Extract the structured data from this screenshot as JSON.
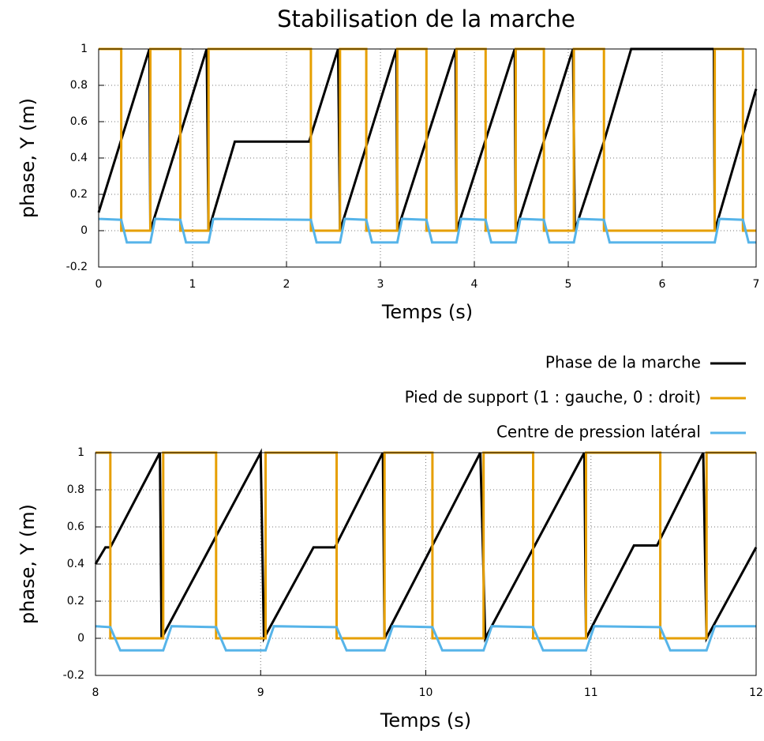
{
  "chart_data": [
    {
      "type": "line",
      "title": "Stabilisation de la marche",
      "xlabel": "Temps (s)",
      "ylabel": "phase, Y (m)",
      "xlim": [
        0,
        7
      ],
      "xticks": [
        0,
        1,
        2,
        3,
        4,
        5,
        6,
        7
      ],
      "ylim": [
        -0.2,
        1
      ],
      "yticks": [
        -0.2,
        0,
        0.2,
        0.4,
        0.6,
        0.8,
        1
      ],
      "grid": true,
      "legend": "outside",
      "series": [
        {
          "name": "Phase de la marche",
          "color": "#000000",
          "x": [
            0,
            0.54,
            0.55,
            1.15,
            1.17,
            1.45,
            2.24,
            2.55,
            2.57,
            3.17,
            3.18,
            3.8,
            3.81,
            4.43,
            4.44,
            5.05,
            5.07,
            5.38,
            5.67,
            6.55,
            6.56,
            7
          ],
          "values": [
            0.1,
            1,
            0,
            1,
            0,
            0.49,
            0.49,
            1,
            0,
            1,
            0,
            1,
            0,
            1,
            0,
            1,
            0,
            0.49,
            1,
            1,
            0,
            0.78
          ]
        },
        {
          "name": "Pied de support (1 : gauche, 0 : droit)",
          "color": "#e69f00",
          "x": [
            0,
            0.24,
            0.24,
            0.55,
            0.55,
            0.87,
            0.87,
            1.17,
            1.17,
            2.26,
            2.26,
            2.57,
            2.57,
            2.85,
            2.85,
            3.18,
            3.18,
            3.49,
            3.49,
            3.81,
            3.81,
            4.12,
            4.12,
            4.44,
            4.44,
            4.74,
            4.74,
            5.06,
            5.06,
            5.38,
            5.38,
            6.56,
            6.56,
            6.86,
            6.86,
            7
          ],
          "values": [
            1,
            1,
            0,
            0,
            1,
            1,
            0,
            0,
            1,
            1,
            0,
            0,
            1,
            1,
            0,
            0,
            1,
            1,
            0,
            0,
            1,
            1,
            0,
            0,
            1,
            1,
            0,
            0,
            1,
            1,
            0,
            0,
            1,
            1,
            0,
            0
          ]
        },
        {
          "name": "Centre de pression latéral",
          "color": "#56b4e9",
          "x": [
            0,
            0.24,
            0.3,
            0.55,
            0.6,
            0.87,
            0.93,
            1.17,
            1.22,
            2.26,
            2.32,
            2.57,
            2.62,
            2.85,
            2.91,
            3.18,
            3.23,
            3.49,
            3.55,
            3.81,
            3.86,
            4.12,
            4.18,
            4.44,
            4.49,
            4.74,
            4.8,
            5.06,
            5.11,
            5.38,
            5.44,
            6.56,
            6.61,
            6.86,
            6.92,
            7
          ],
          "values": [
            0.065,
            0.06,
            -0.065,
            -0.065,
            0.065,
            0.06,
            -0.065,
            -0.065,
            0.065,
            0.06,
            -0.065,
            -0.065,
            0.065,
            0.06,
            -0.065,
            -0.065,
            0.065,
            0.06,
            -0.065,
            -0.065,
            0.065,
            0.06,
            -0.065,
            -0.065,
            0.065,
            0.06,
            -0.065,
            -0.065,
            0.065,
            0.06,
            -0.065,
            -0.065,
            0.065,
            0.06,
            -0.065,
            -0.065
          ]
        }
      ]
    },
    {
      "type": "line",
      "xlabel": "Temps (s)",
      "ylabel": "phase, Y (m)",
      "xlim": [
        8,
        12
      ],
      "xticks": [
        8,
        9,
        10,
        11,
        12
      ],
      "ylim": [
        -0.2,
        1
      ],
      "yticks": [
        -0.2,
        0,
        0.2,
        0.4,
        0.6,
        0.8,
        1
      ],
      "grid": true,
      "series": [
        {
          "color": "#000000",
          "x": [
            8,
            8.06,
            8.09,
            8.39,
            8.4,
            8.7,
            9.0,
            9.02,
            9.32,
            9.45,
            9.74,
            9.75,
            10.33,
            10.36,
            10.66,
            10.96,
            10.97,
            11.26,
            11.4,
            11.68,
            11.7,
            12
          ],
          "values": [
            0.4,
            0.49,
            0.49,
            1,
            0,
            0.5,
            1,
            0,
            0.49,
            0.49,
            1,
            0,
            1,
            0,
            0.5,
            1,
            0,
            0.5,
            0.5,
            1,
            0,
            0.49
          ]
        },
        {
          "color": "#e69f00",
          "x": [
            8,
            8.09,
            8.09,
            8.41,
            8.41,
            8.73,
            8.73,
            9.03,
            9.03,
            9.46,
            9.46,
            9.75,
            9.75,
            10.04,
            10.04,
            10.35,
            10.35,
            10.65,
            10.65,
            10.97,
            10.97,
            11.42,
            11.42,
            11.7,
            11.7,
            12
          ],
          "values": [
            1,
            1,
            0,
            0,
            1,
            1,
            0,
            0,
            1,
            1,
            0,
            0,
            1,
            1,
            0,
            0,
            1,
            1,
            0,
            0,
            1,
            1,
            0,
            0,
            1,
            1
          ]
        },
        {
          "color": "#56b4e9",
          "x": [
            8,
            8.09,
            8.15,
            8.41,
            8.46,
            8.73,
            8.79,
            9.03,
            9.08,
            9.46,
            9.52,
            9.75,
            9.8,
            10.04,
            10.1,
            10.35,
            10.4,
            10.65,
            10.71,
            10.97,
            11.02,
            11.42,
            11.48,
            11.7,
            11.75,
            12
          ],
          "values": [
            0.065,
            0.06,
            -0.065,
            -0.065,
            0.065,
            0.06,
            -0.065,
            -0.065,
            0.065,
            0.06,
            -0.065,
            -0.065,
            0.065,
            0.06,
            -0.065,
            -0.065,
            0.065,
            0.06,
            -0.065,
            -0.065,
            0.065,
            0.06,
            -0.065,
            -0.065,
            0.065,
            0.065
          ]
        }
      ]
    }
  ]
}
